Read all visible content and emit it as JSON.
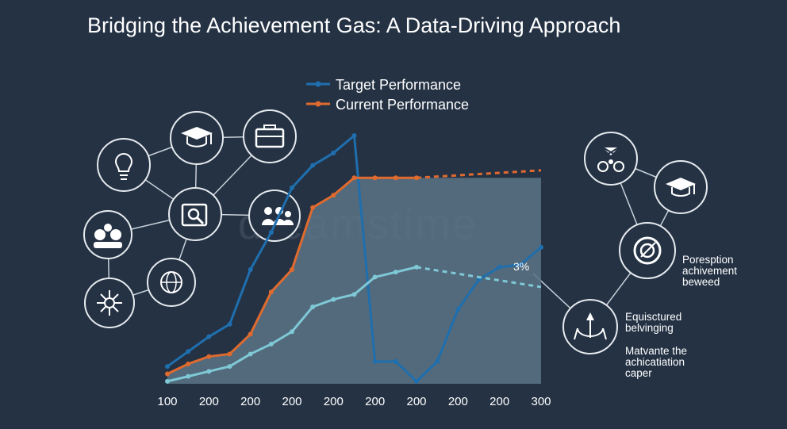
{
  "title": "Bridging the Achievement Gas: A Data-Driving Approach",
  "watermark": "dreamstime",
  "annotations": {
    "percent": "3%",
    "note1": [
      "Poresption",
      "achivement",
      "beweed"
    ],
    "note2": [
      "Equisctured",
      "belvinging"
    ],
    "note3": [
      "Matvante the",
      "achicatiation",
      "caper"
    ]
  },
  "icons": {
    "left": [
      "lightbulb-icon",
      "graduation-cap-icon",
      "briefcase-icon",
      "people-group-icon",
      "search-document-icon",
      "team-icon",
      "globe-icon",
      "network-icon"
    ],
    "right": [
      "meeting-icon",
      "graduation-cap-icon",
      "target-icon",
      "balance-icon"
    ]
  },
  "colors": {
    "background": "#243244",
    "target": "#1f6fae",
    "current": "#e06a2e",
    "third_line": "#7fc8d6",
    "area": "#5a7486"
  },
  "chart_data": {
    "type": "line",
    "title": "Bridging the Achievement Gas: A Data-Driving Approach",
    "xlabel": "",
    "ylabel": "",
    "categories": [
      "100",
      "200",
      "200",
      "200",
      "200",
      "200",
      "200",
      "200",
      "200",
      "300"
    ],
    "legend_position": "top",
    "grid": false,
    "series": [
      {
        "name": "Target Performance",
        "color": "#1f6fae",
        "x": [
          0,
          0.5,
          1,
          1.5,
          2,
          2.5,
          3,
          3.5,
          4,
          4.5,
          5,
          5.5,
          6,
          6.5,
          7,
          7.5,
          8,
          8.5,
          9
        ],
        "values": [
          7,
          13,
          19,
          24,
          46,
          61,
          79,
          88,
          93,
          100,
          9,
          9,
          1,
          9,
          30,
          42,
          47,
          48,
          55
        ]
      },
      {
        "name": "Current Performance",
        "color": "#e06a2e",
        "x": [
          0,
          0.5,
          1,
          1.5,
          2,
          2.5,
          3,
          3.5,
          4,
          4.5,
          5,
          5.5,
          6
        ],
        "values": [
          4,
          8,
          11,
          12,
          20,
          37,
          46,
          71,
          76,
          83,
          83,
          83,
          83
        ]
      },
      {
        "name": "",
        "color": "#7fc8d6",
        "x": [
          0,
          0.5,
          1,
          1.5,
          2,
          2.5,
          3,
          3.5,
          4,
          4.5,
          5,
          5.5,
          6
        ],
        "values": [
          1,
          3,
          5,
          7,
          12,
          16,
          21,
          31,
          34,
          36,
          43,
          45,
          47
        ]
      }
    ]
  }
}
